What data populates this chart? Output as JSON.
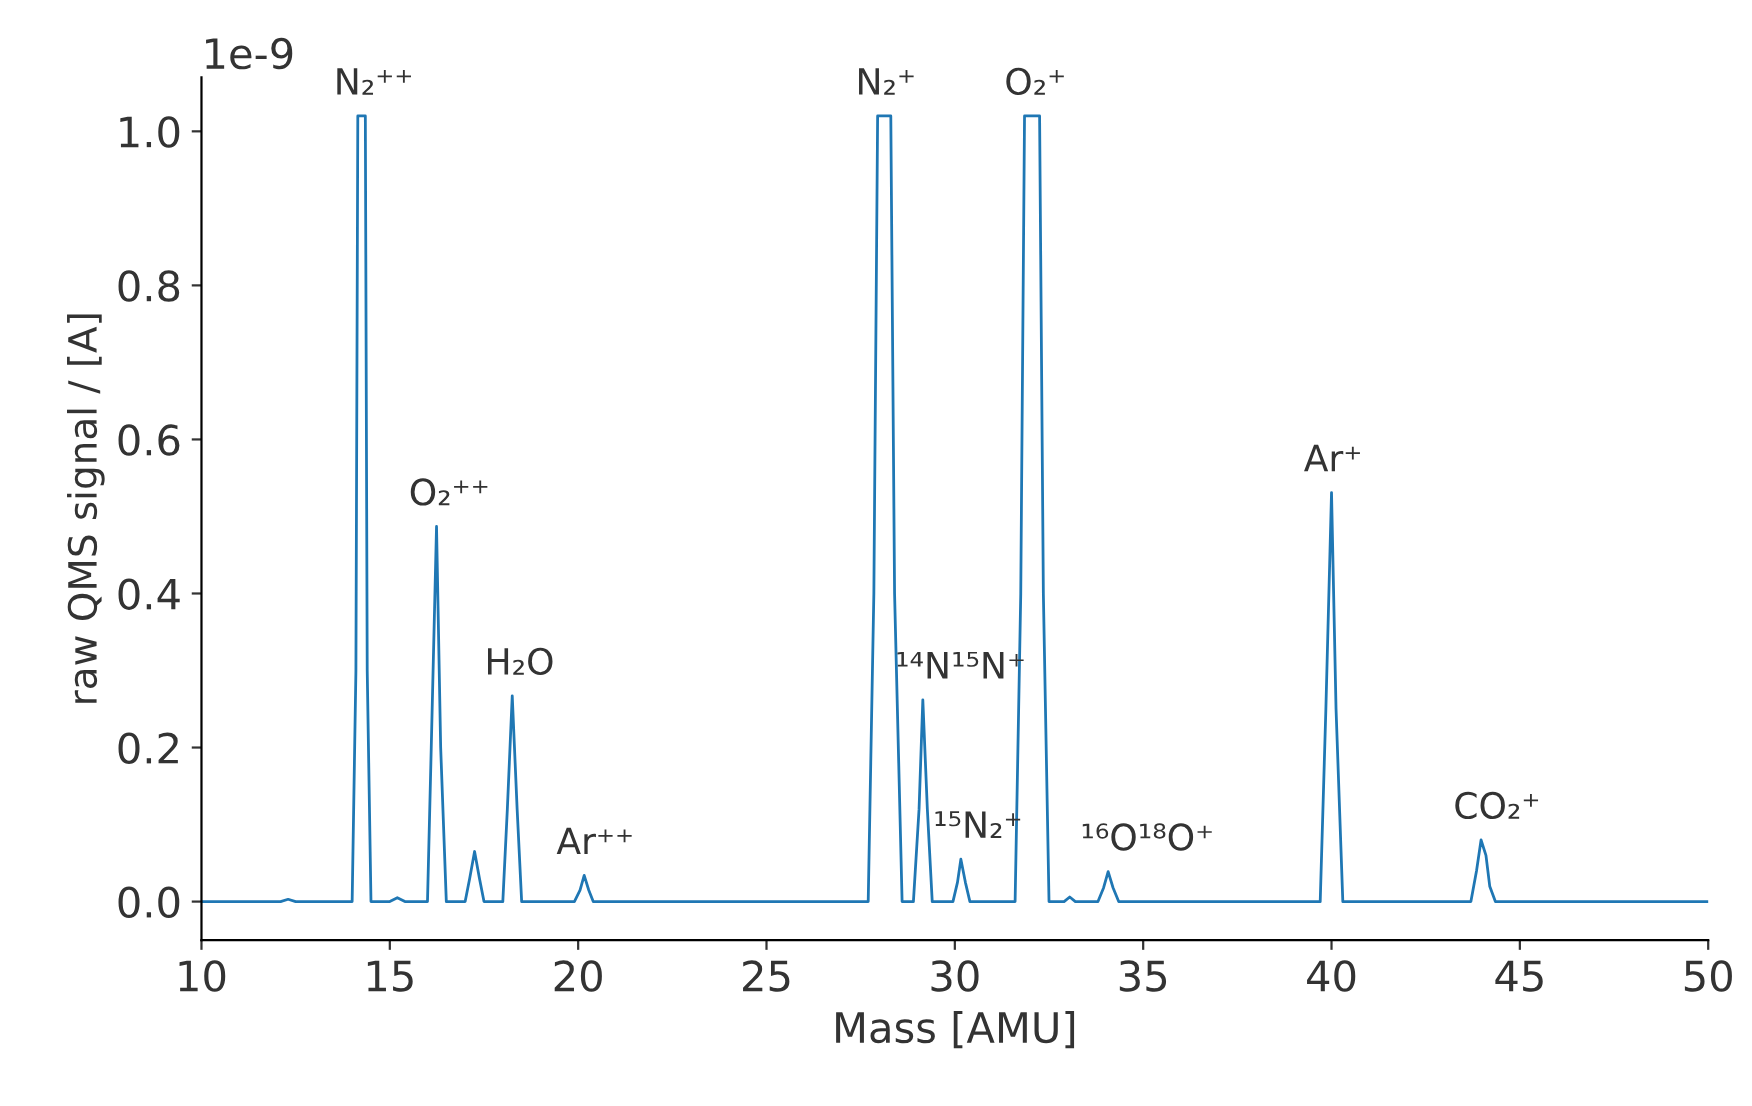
{
  "chart_data": {
    "type": "line",
    "xlabel": "Mass [AMU]",
    "ylabel": "raw QMS signal / [A]",
    "series": [
      {
        "color": "#1f77b4",
        "x": [
          10,
          12.1,
          12.3,
          12.5,
          14.0,
          14.1,
          14.15,
          14.35,
          14.4,
          14.5,
          15.0,
          15.2,
          15.4,
          16.0,
          16.1,
          16.24,
          16.35,
          16.5,
          17.0,
          17.12,
          17.25,
          17.38,
          17.5,
          18.0,
          18.12,
          18.25,
          18.38,
          18.5,
          19.9,
          20.05,
          20.16,
          20.28,
          20.4,
          27.7,
          27.85,
          27.95,
          28.3,
          28.4,
          28.6,
          28.9,
          29.05,
          29.15,
          29.27,
          29.4,
          29.95,
          30.07,
          30.16,
          30.28,
          30.4,
          31.6,
          31.75,
          31.85,
          32.25,
          32.35,
          32.5,
          32.9,
          33.05,
          33.2,
          33.8,
          33.95,
          34.07,
          34.2,
          34.35,
          39.7,
          39.85,
          40.0,
          40.12,
          40.3,
          43.7,
          43.85,
          43.97,
          44.1,
          44.2,
          44.35,
          50
        ],
        "values": [
          0,
          0,
          0.003,
          0,
          0,
          0.3,
          1.02,
          1.02,
          0.3,
          0,
          0,
          0.005,
          0,
          0,
          0.2,
          0.487,
          0.2,
          0,
          0,
          0.03,
          0.065,
          0.03,
          0,
          0,
          0.12,
          0.267,
          0.12,
          0,
          0,
          0.015,
          0.034,
          0.015,
          0,
          0,
          0.4,
          1.02,
          1.02,
          0.4,
          0,
          0,
          0.12,
          0.262,
          0.12,
          0,
          0,
          0.025,
          0.055,
          0.025,
          0,
          0,
          0.4,
          1.02,
          1.02,
          0.4,
          0,
          0,
          0.006,
          0,
          0,
          0.018,
          0.039,
          0.018,
          0,
          0,
          0.25,
          0.531,
          0.25,
          0,
          0,
          0.04,
          0.08,
          0.06,
          0.02,
          0,
          0
        ]
      }
    ],
    "xlim": [
      10,
      50
    ],
    "ylim": [
      -0.05,
      1.07
    ],
    "xticks": [
      10,
      15,
      20,
      25,
      30,
      35,
      40,
      45,
      50
    ],
    "yticks": [
      {
        "value": 0,
        "label": "0.0"
      },
      {
        "value": 0.2,
        "label": "0.2"
      },
      {
        "value": 0.4,
        "label": "0.4"
      },
      {
        "value": 0.6,
        "label": "0.6"
      },
      {
        "value": 0.8,
        "label": "0.8"
      },
      {
        "value": 1.0,
        "label": "1.0"
      }
    ],
    "grid": false,
    "marker": "none",
    "line_style": "solid",
    "annotations": [
      "1e-9",
      {
        "text": "N₂⁺⁺",
        "x": 14.25,
        "y": 1.02
      },
      {
        "text": "O₂⁺⁺",
        "x": 16.24,
        "y": 0.487
      },
      {
        "text": "H₂O",
        "x": 18.25,
        "y": 0.267
      },
      {
        "text": "Ar⁺⁺",
        "x": 20.16,
        "y": 0.034
      },
      {
        "text": "N₂⁺",
        "x": 28.1,
        "y": 1.02
      },
      {
        "text": "¹⁴N¹⁵N⁺",
        "x": 29.15,
        "y": 0.262
      },
      {
        "text": "¹⁵N₂⁺",
        "x": 30.16,
        "y": 0.055
      },
      {
        "text": "O₂⁺",
        "x": 32.05,
        "y": 1.02
      },
      {
        "text": "¹⁶O¹⁸O⁺",
        "x": 34.07,
        "y": 0.039
      },
      {
        "text": "Ar⁺",
        "x": 40.0,
        "y": 0.531
      },
      {
        "text": "CO₂⁺",
        "x": 43.97,
        "y": 0.08
      }
    ]
  }
}
